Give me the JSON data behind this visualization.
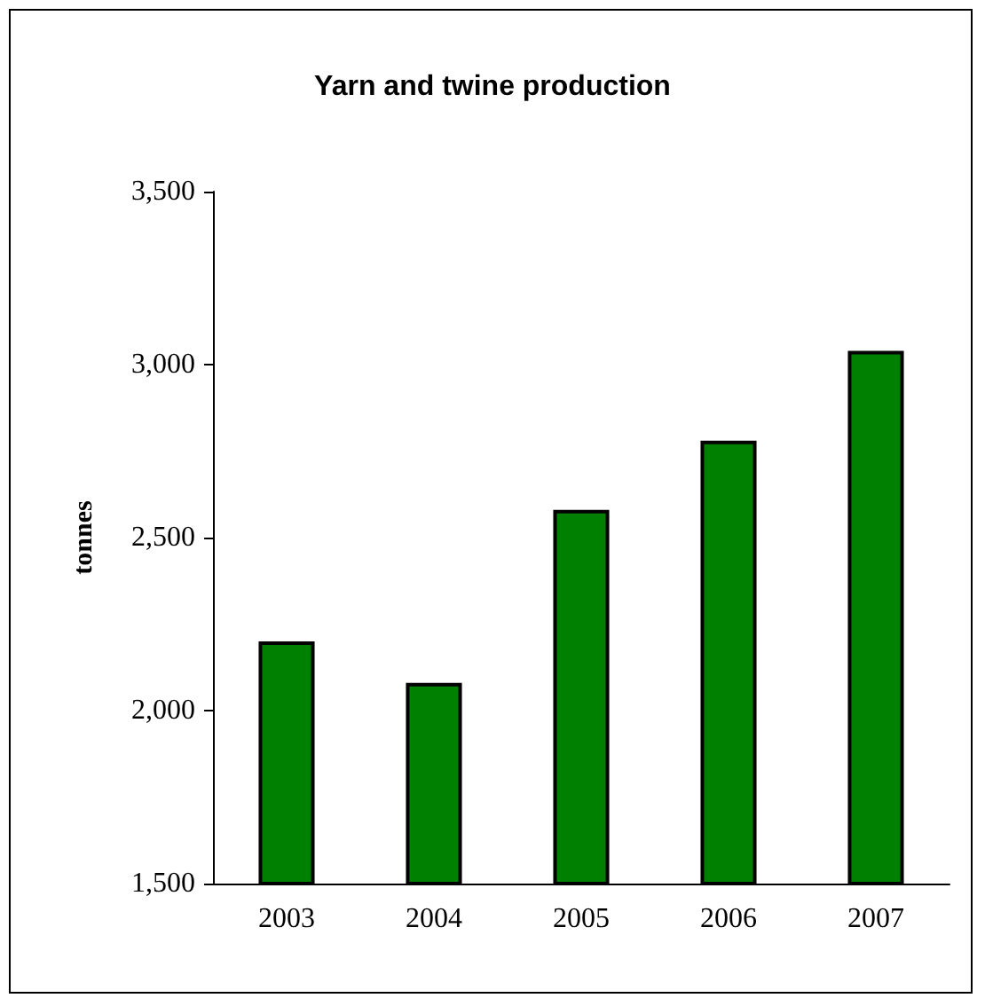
{
  "chart_data": {
    "type": "bar",
    "title": "Yarn and twine production",
    "ylabel": "tonnes",
    "categories": [
      "2003",
      "2004",
      "2005",
      "2006",
      "2007"
    ],
    "values": [
      2200,
      2080,
      2580,
      2780,
      3040
    ],
    "color": "#008000",
    "ylim": [
      1500,
      3500
    ],
    "yticks": [
      {
        "value": 1500,
        "label": "1,500"
      },
      {
        "value": 2000,
        "label": "2,000"
      },
      {
        "value": 2500,
        "label": "2,500"
      },
      {
        "value": 3000,
        "label": "3,000"
      },
      {
        "value": 3500,
        "label": "3,500"
      }
    ],
    "grid": false
  }
}
